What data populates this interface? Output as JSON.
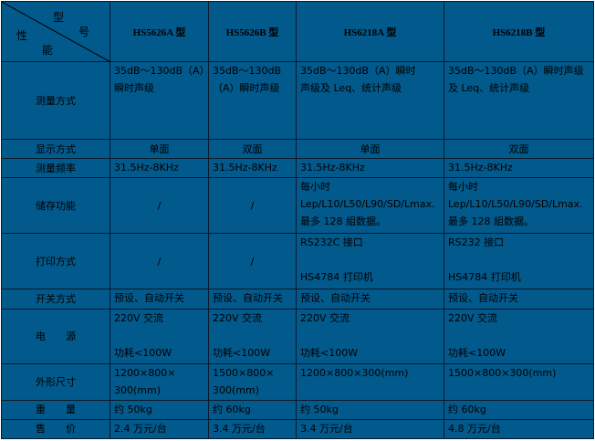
{
  "header": {
    "corner": {
      "model": [
        "型",
        "号"
      ],
      "performance": [
        "性",
        "能"
      ]
    },
    "models": [
      "HS5626A 型",
      "HS5626B 型",
      "HS6218A 型",
      "HS6218B 型"
    ]
  },
  "rows": [
    {
      "label": "测量方式",
      "cells": [
        [
          "35dB～130dB（A）",
          "瞬时声级"
        ],
        [
          "35dB～130dB",
          "（A）瞬时声级"
        ],
        [
          "35dB～130dB（A）瞬时",
          "声级及 Leq、统计声级"
        ],
        [
          "35dB～130dB（A）瞬时声级",
          "及 Leq、统计声级"
        ]
      ]
    },
    {
      "label": "显示方式",
      "cells": [
        [
          "单面"
        ],
        [
          "双面"
        ],
        [
          "单面"
        ],
        [
          "双面"
        ]
      ]
    },
    {
      "label": "测量频率",
      "cells": [
        [
          "31.5Hz-8KHz"
        ],
        [
          "31.5Hz-8KHz"
        ],
        [
          "31.5Hz-8KHz"
        ],
        [
          "31.5Hz-8KHz"
        ]
      ]
    },
    {
      "label": "储存功能",
      "cells": [
        [
          "/"
        ],
        [
          "/"
        ],
        [
          "每小时",
          "Lep/L10/L50/L90/SD/Lmax.",
          "最多 128 組数据。"
        ],
        [
          "每小时",
          "Lep/L10/L50/L90/SD/Lmax.",
          "最多 128 組数据。"
        ]
      ]
    },
    {
      "label": "打印方式",
      "cells": [
        [
          "/"
        ],
        [
          "/"
        ],
        [
          "RS232C 接口",
          "",
          "HS4784 打印机"
        ],
        [
          "RS232 接口",
          "",
          "HS4784 打印机"
        ]
      ]
    },
    {
      "label": "开关方式",
      "cells": [
        [
          "预设、自动开关"
        ],
        [
          "预设、自动开关"
        ],
        [
          "预设、自动开关"
        ],
        [
          "预设、自动开关"
        ]
      ]
    },
    {
      "label": "电　　源",
      "cells": [
        [
          "220V 交流",
          "",
          "功耗<100W"
        ],
        [
          "220V 交流",
          "",
          "功耗<100W"
        ],
        [
          "220V 交流",
          "",
          "功耗<100W"
        ],
        [
          "220V 交流",
          "",
          "功耗<100W"
        ]
      ]
    },
    {
      "label": "外形尺寸",
      "cells": [
        [
          "1200×800×",
          "300(mm)"
        ],
        [
          "1500×800×",
          "300(mm)"
        ],
        [
          "1200×800×300(mm)"
        ],
        [
          "1500×800×300(mm)"
        ]
      ]
    },
    {
      "label": "重　　量",
      "cells": [
        [
          "约 50kg"
        ],
        [
          "约 60kg"
        ],
        [
          "约 50kg"
        ],
        [
          "约 60kg"
        ]
      ]
    },
    {
      "label": "售　　价",
      "cells": [
        [
          "2.4 万元/台"
        ],
        [
          "3.4 万元/台"
        ],
        [
          "3.4 万元/台"
        ],
        [
          "4.8 万元/台"
        ]
      ]
    }
  ],
  "colors": {
    "background": "#02598b",
    "border": "#0a1a2a",
    "text": "#000000"
  }
}
